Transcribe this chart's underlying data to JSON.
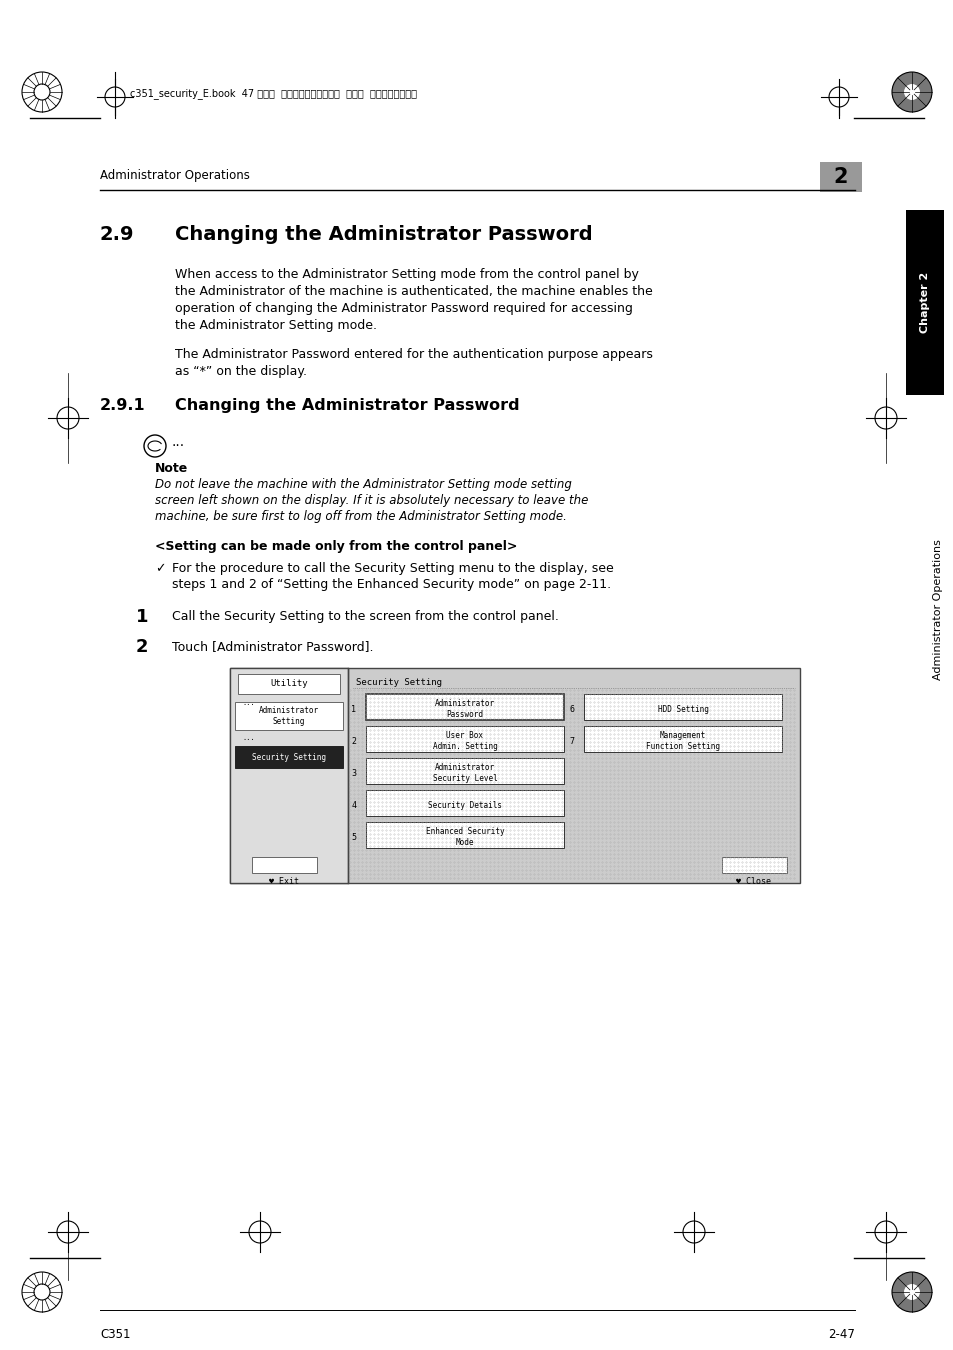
{
  "page_bg": "#ffffff",
  "header_text_left": "Administrator Operations",
  "header_chapter_num": "2",
  "chapter_tab_text": "Chapter 2",
  "side_tab_text": "Administrator Operations",
  "top_meta_text": "c351_security_E.book  47 ページ  ２００７年４月１１日  水曜日  午前１０時１９分",
  "section_num": "2.9",
  "section_title": "Changing the Administrator Password",
  "para1_lines": [
    "When access to the Administrator Setting mode from the control panel by",
    "the Administrator of the machine is authenticated, the machine enables the",
    "operation of changing the Administrator Password required for accessing",
    "the Administrator Setting mode."
  ],
  "para2_lines": [
    "The Administrator Password entered for the authentication purpose appears",
    "as “*” on the display."
  ],
  "subsection_num": "2.9.1",
  "subsection_title": "Changing the Administrator Password",
  "note_label": "Note",
  "note_lines": [
    "Do not leave the machine with the Administrator Setting mode setting",
    "screen left shown on the display. If it is absolutely necessary to leave the",
    "machine, be sure first to log off from the Administrator Setting mode."
  ],
  "setting_header": "<Setting can be made only from the control panel>",
  "check_lines": [
    "For the procedure to call the Security Setting menu to the display, see",
    "steps 1 and 2 of “Setting the Enhanced Security mode” on page 2-11."
  ],
  "step1_text": "Call the Security Setting to the screen from the control panel.",
  "step2_text": "Touch [Administrator Password].",
  "footer_left": "C351",
  "footer_right": "2-47"
}
